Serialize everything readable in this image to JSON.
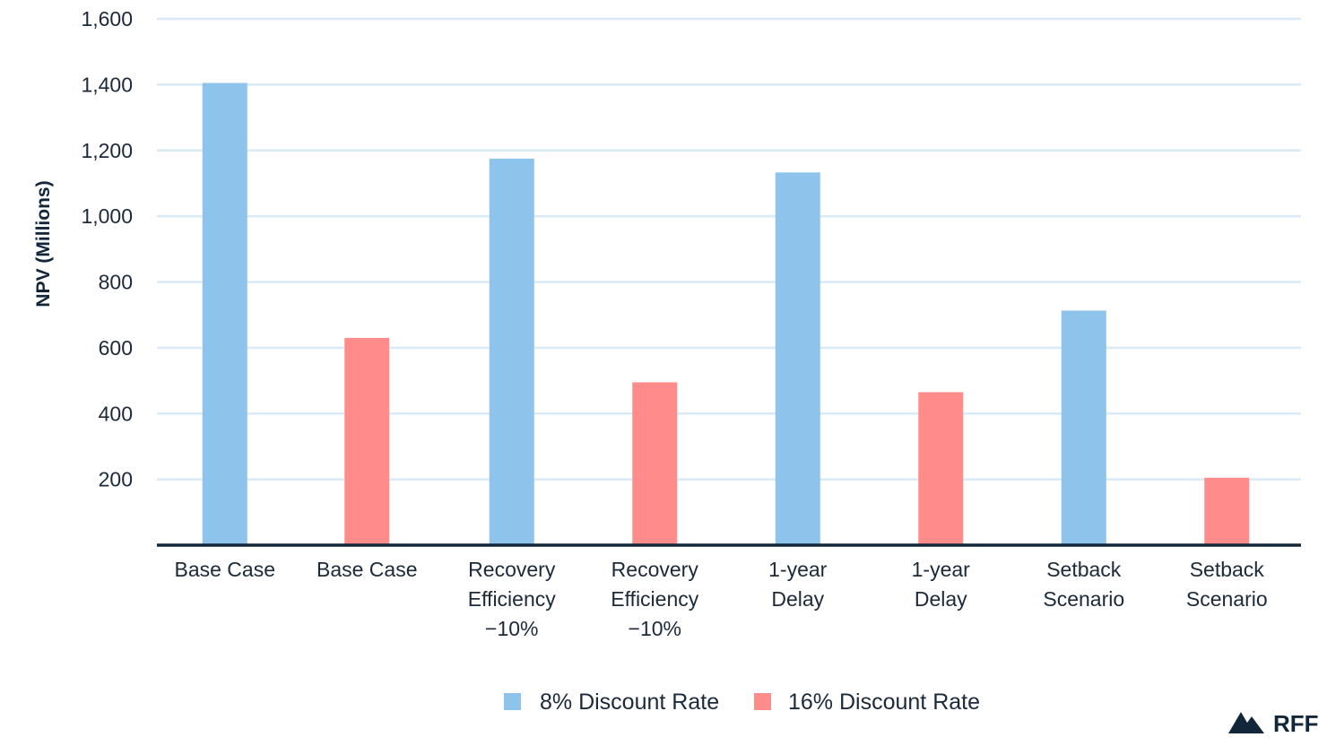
{
  "chart_data": {
    "type": "bar",
    "ylabel": "NPV (Millions)",
    "ylim": [
      0,
      1600
    ],
    "yticks": [
      200,
      400,
      600,
      800,
      1000,
      1200,
      1400,
      1600
    ],
    "ytick_labels": [
      "200",
      "400",
      "600",
      "800",
      "1,000",
      "1,200",
      "1,400",
      "1,600"
    ],
    "grid": true,
    "legend_position": "bottom-center",
    "bars": [
      {
        "label": [
          "Base Case"
        ],
        "series": "8% Discount Rate",
        "value": 1405
      },
      {
        "label": [
          "Base Case"
        ],
        "series": "16% Discount Rate",
        "value": 630
      },
      {
        "label": [
          "Recovery",
          "Efficiency",
          "−10%"
        ],
        "series": "8% Discount Rate",
        "value": 1175
      },
      {
        "label": [
          "Recovery",
          "Efficiency",
          "−10%"
        ],
        "series": "16% Discount Rate",
        "value": 495
      },
      {
        "label": [
          "1-year",
          "Delay"
        ],
        "series": "8% Discount Rate",
        "value": 1133
      },
      {
        "label": [
          "1-year",
          "Delay"
        ],
        "series": "16% Discount Rate",
        "value": 465
      },
      {
        "label": [
          "Setback",
          "Scenario"
        ],
        "series": "8% Discount Rate",
        "value": 713
      },
      {
        "label": [
          "Setback",
          "Scenario"
        ],
        "series": "16% Discount Rate",
        "value": 205
      }
    ],
    "series": [
      {
        "name": "8% Discount Rate",
        "color": "#8ec4ec"
      },
      {
        "name": "16% Discount Rate",
        "color": "#ff8c8a"
      }
    ]
  },
  "logo": {
    "text": "RFF",
    "icon": "mountain-icon",
    "color": "#12263a"
  }
}
